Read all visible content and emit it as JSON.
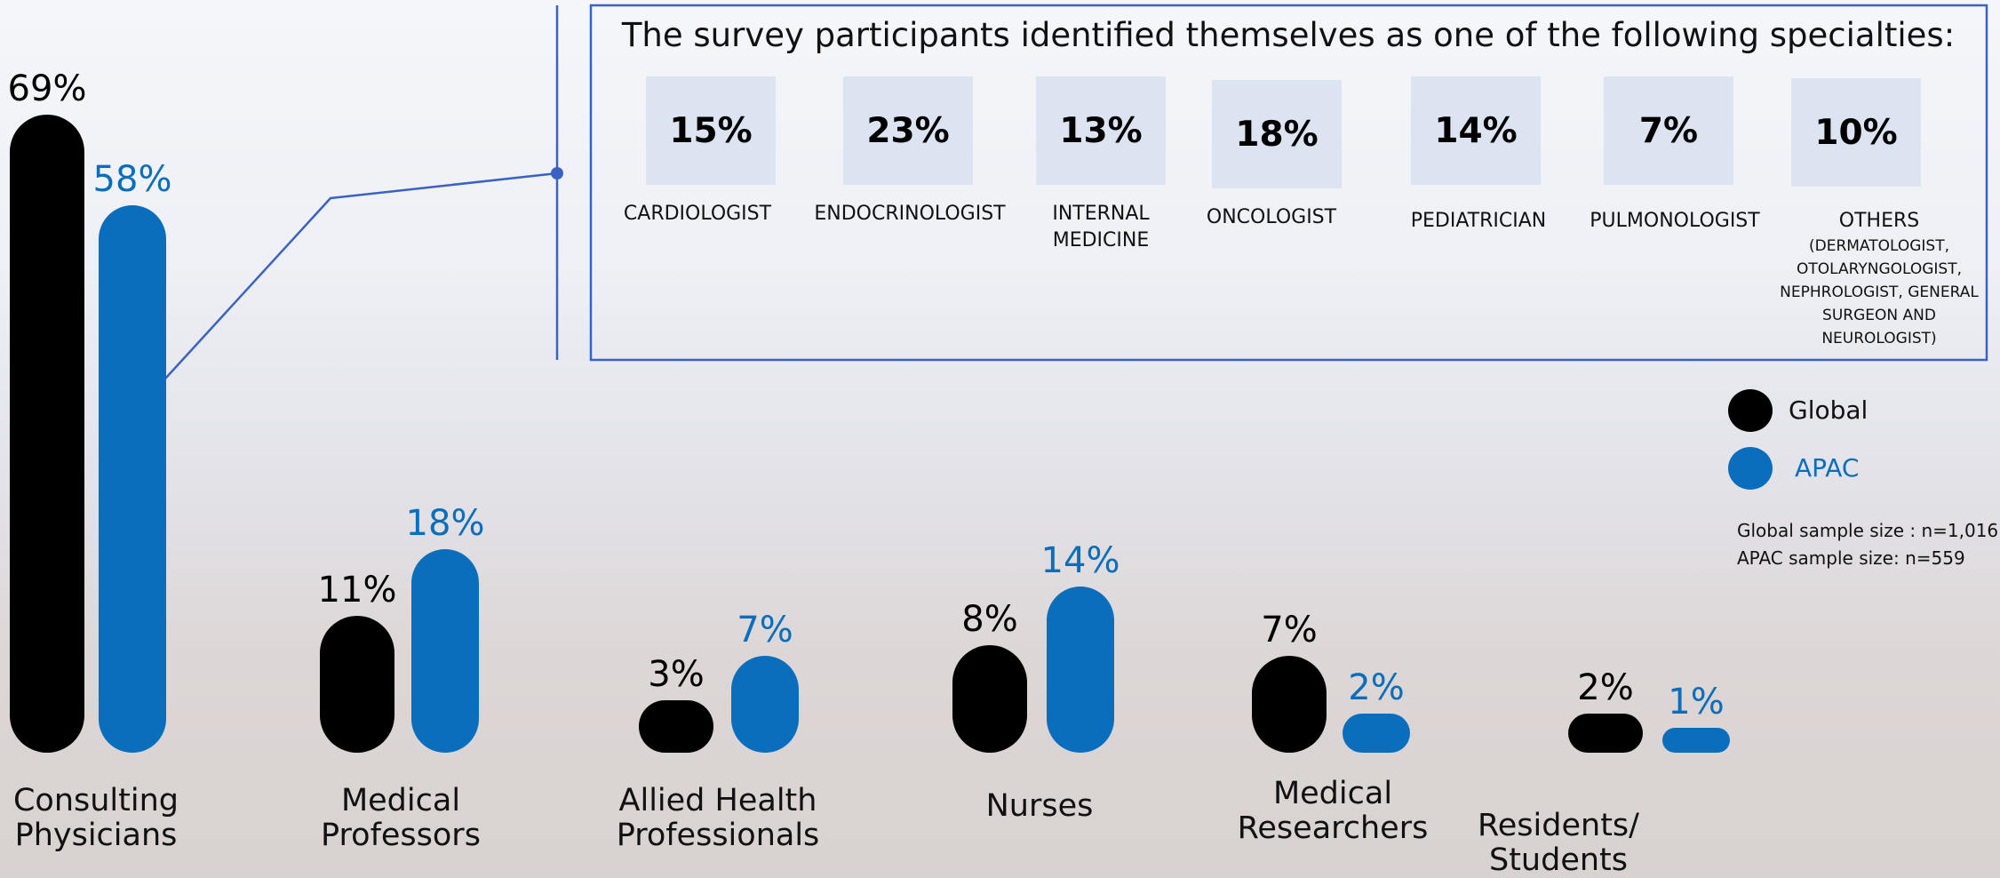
{
  "chart_data": [
    {
      "type": "bar",
      "categories": [
        "Consulting Physicians",
        "Medical Professors",
        "Allied Health Professionals",
        "Nurses",
        "Medical Researchers",
        "Residents/ Students"
      ],
      "series": [
        {
          "name": "Global",
          "color": "#000000",
          "values": [
            69,
            11,
            3,
            8,
            7,
            2
          ],
          "value_labels": [
            "69%",
            "11%",
            "3%",
            "8%",
            "7%",
            "2%"
          ]
        },
        {
          "name": "APAC",
          "color": "#0a6ebd",
          "values": [
            58,
            18,
            7,
            14,
            2,
            1
          ],
          "value_labels": [
            "58%",
            "18%",
            "7%",
            "14%",
            "2%",
            "1%"
          ]
        }
      ],
      "notes": [
        "Global sample size : n=1,016",
        "APAC sample size: n=559"
      ]
    },
    {
      "type": "tiles",
      "title": "The survey participants identified themselves as one of the following specialties:",
      "categories": [
        "CARDIOLOGIST",
        "ENDOCRINOLOGIST",
        "INTERNAL MEDICINE",
        "ONCOLOGIST",
        "PEDIATRICIAN",
        "PULMONOLOGIST",
        "OTHERS"
      ],
      "values": [
        15,
        23,
        13,
        18,
        14,
        7,
        10
      ],
      "value_labels": [
        "15%",
        "23%",
        "13%",
        "18%",
        "14%",
        "7%",
        "10%"
      ],
      "detail": "(DERMATOLOGIST, OTOLARYNGOLOGIST, NEPHROLOGIST, GENERAL SURGEON AND NEUROLOGIST)",
      "color": "#dce4f2"
    }
  ]
}
